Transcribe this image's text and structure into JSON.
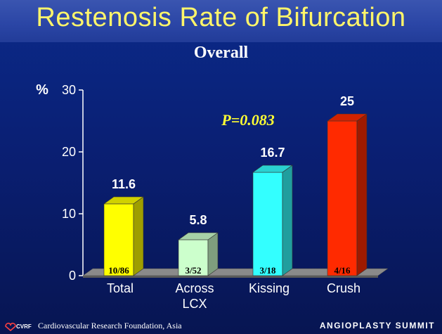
{
  "slide": {
    "title": "Restenosis Rate of Bifurcation",
    "subtitle": "Overall",
    "footer_left": "Cardiovascular Research Foundation, Asia",
    "footer_logo_text": "CVRF",
    "footer_right": "ANGIOPLASTY SUMMIT",
    "annotation": "P=0.083"
  },
  "colors": {
    "title": "#fff56a",
    "annotation": "#ffff33",
    "bars": [
      "#ffff00",
      "#ccffcc",
      "#33ffff",
      "#ff2a00"
    ]
  },
  "chart_data": {
    "type": "bar",
    "title": "Overall",
    "ylabel": "%",
    "ylim": [
      0,
      30
    ],
    "yticks": [
      0,
      10,
      20,
      30
    ],
    "grid": false,
    "categories": [
      "Total",
      "Across\nLCX",
      "Kissing",
      "Crush"
    ],
    "values": [
      11.6,
      5.8,
      16.7,
      25
    ],
    "value_labels": [
      "11.6",
      "5.8",
      "16.7",
      "25"
    ],
    "count_labels": [
      "10/86",
      "3/52",
      "3/18",
      "4/16"
    ]
  }
}
